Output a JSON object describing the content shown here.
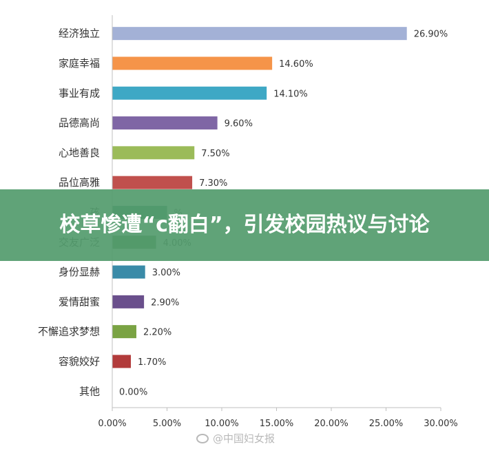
{
  "chart_data": {
    "type": "bar",
    "orientation": "horizontal",
    "categories": [
      "经济独立",
      "家庭幸福",
      "事业有成",
      "品德高尚",
      "心地善良",
      "品位高雅",
      "孩",
      "交友广泛",
      "身份显赫",
      "爱情甜蜜",
      "不懈追求梦想",
      "容貌姣好",
      "其他"
    ],
    "values": [
      26.9,
      14.6,
      14.1,
      9.6,
      7.5,
      7.3,
      5.0,
      4.0,
      3.0,
      2.9,
      2.2,
      1.7,
      0.0
    ],
    "value_labels": [
      "26.90%",
      "14.60%",
      "14.10%",
      "9.60%",
      "7.50%",
      "7.30%",
      "%",
      "4.00%",
      "3.00%",
      "2.90%",
      "2.20%",
      "1.70%",
      "0.00%"
    ],
    "colors": [
      "#a3b1d6",
      "#f59449",
      "#3ea8c5",
      "#7f66a5",
      "#9bbb59",
      "#c0504d",
      "#2f7a6a",
      "#4e7b3a",
      "#3a8ba8",
      "#6a4f8c",
      "#7aa343",
      "#b23b3b",
      "#999999"
    ],
    "xlim": [
      0,
      30
    ],
    "xticks": [
      "0.00%",
      "5.00%",
      "10.00%",
      "15.00%",
      "20.00%",
      "25.00%",
      "30.00%"
    ],
    "grid": false,
    "legend": "none"
  },
  "banner": {
    "title": "校草惨遭“c翻白”，引发校园热议与讨论"
  },
  "watermark": {
    "text": "@中国妇女报"
  }
}
